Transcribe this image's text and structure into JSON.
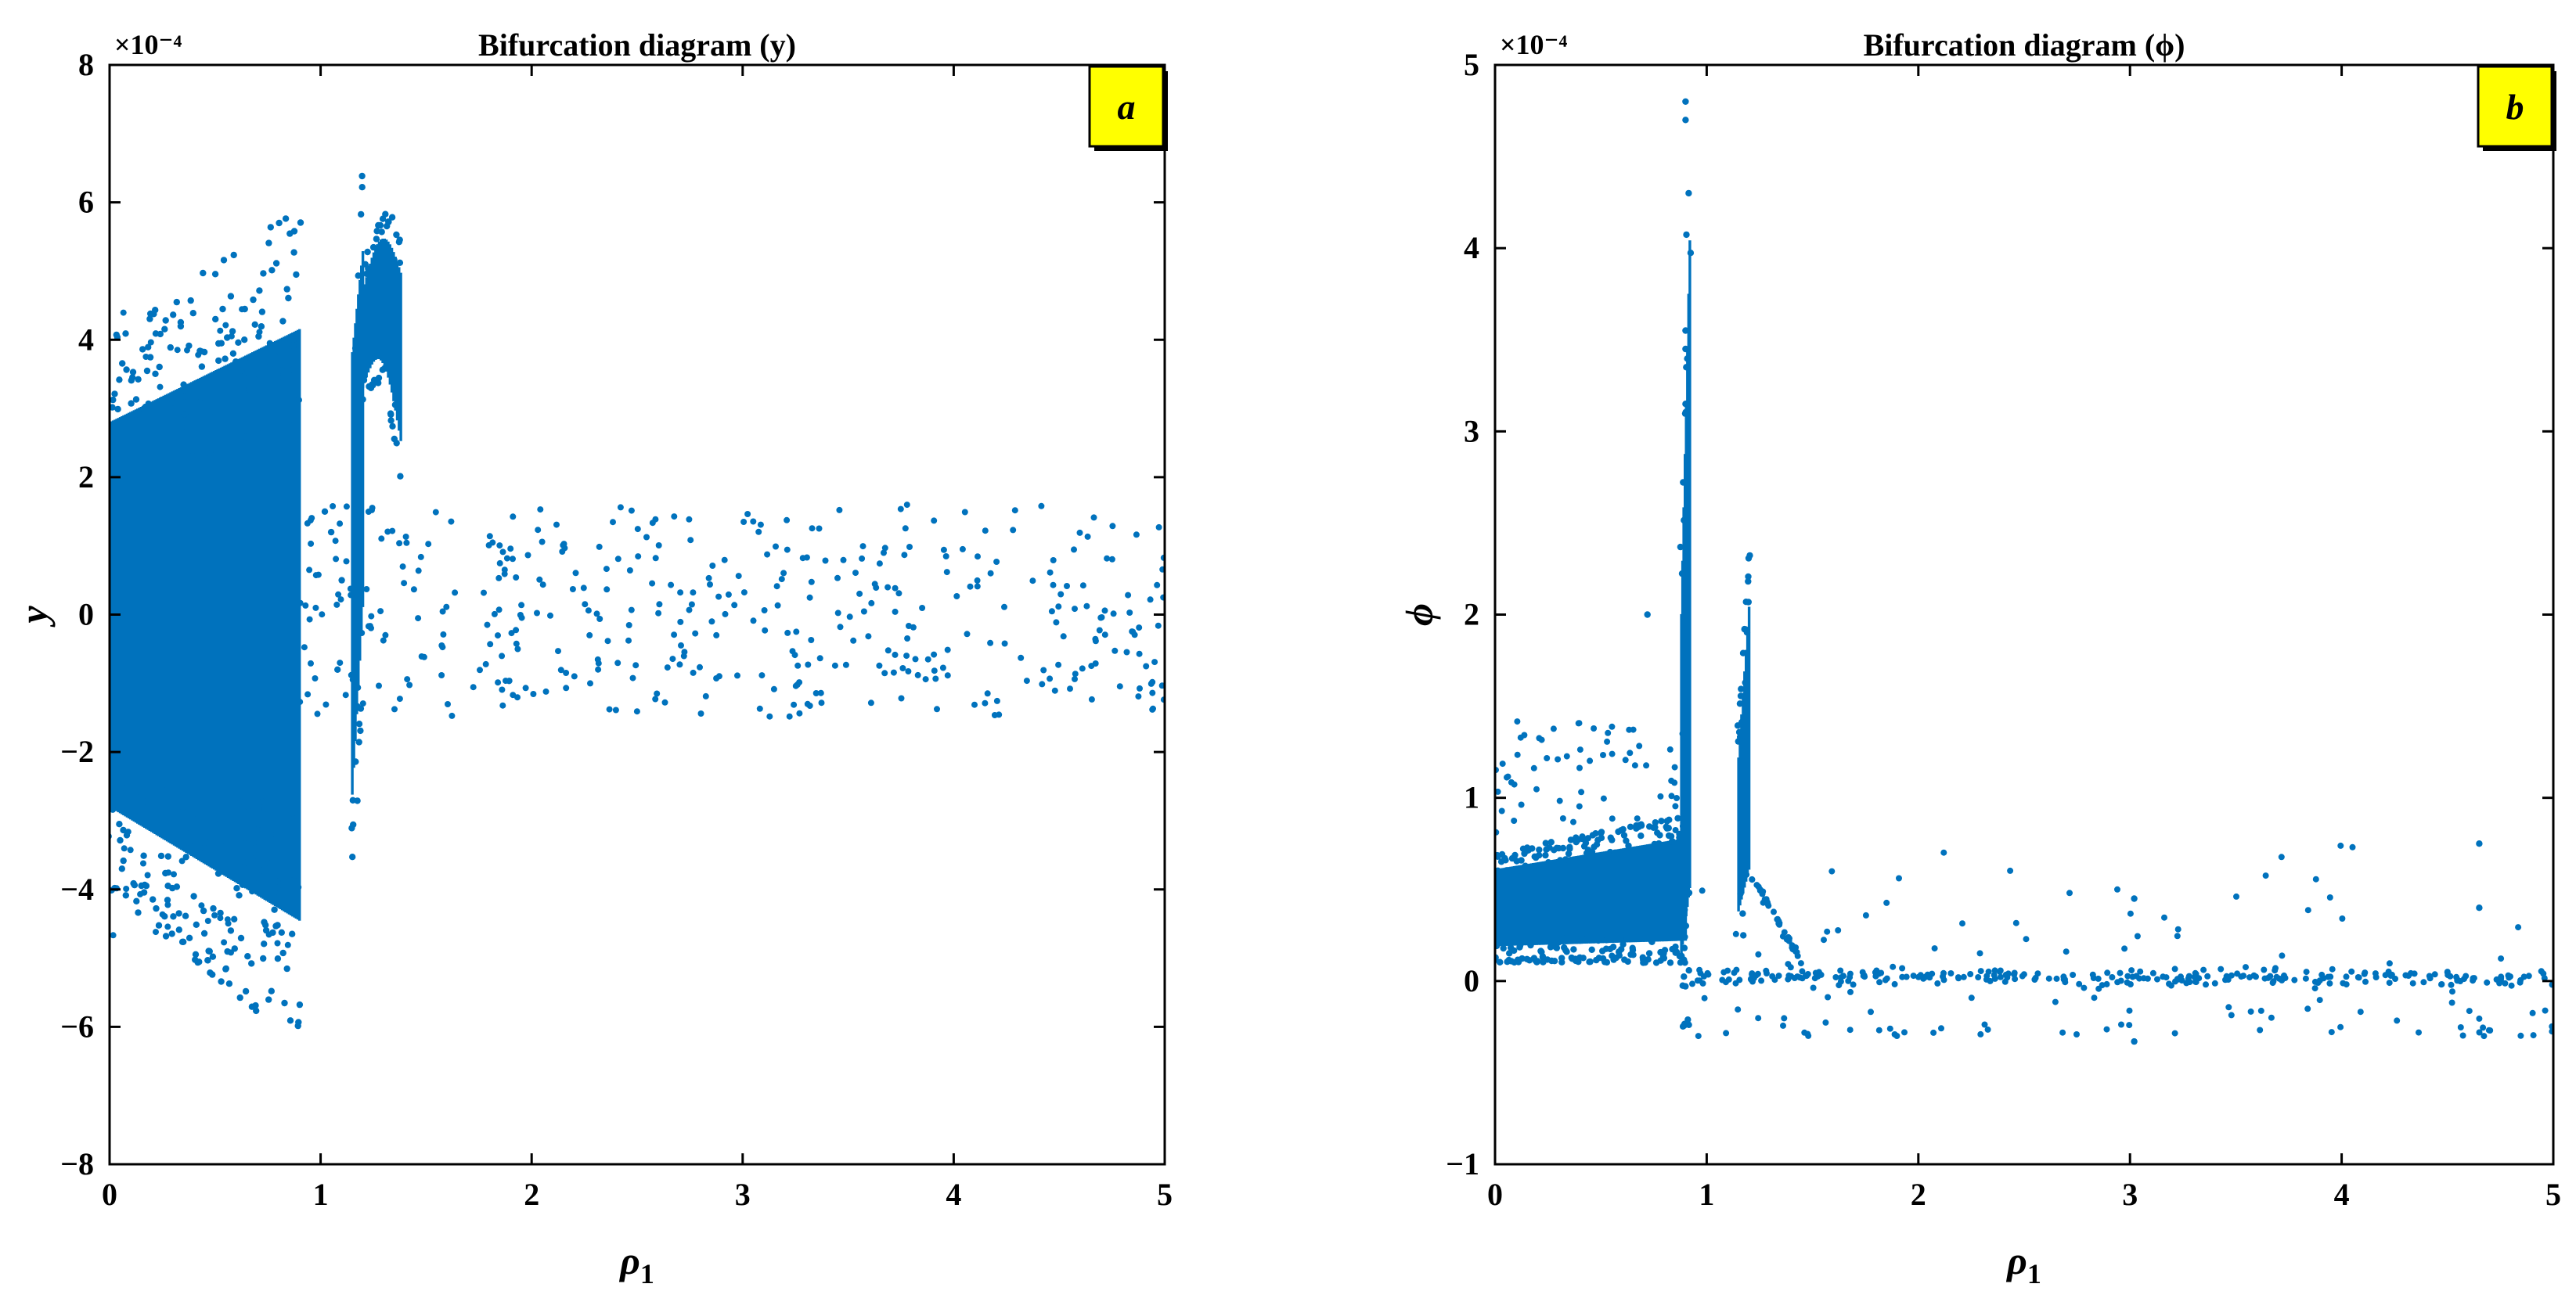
{
  "colors": {
    "marker": "#0072BD",
    "badge_fill": "#FFFF00",
    "axes": "#000000"
  },
  "chart_data": [
    {
      "type": "scatter",
      "panel": "a",
      "title": "Bifurcation diagram (y)",
      "xlabel": "ρ1",
      "ylabel": "y",
      "exponent_label": "×10⁻⁴",
      "xlim": [
        0,
        5
      ],
      "ylim": [
        -8,
        8
      ],
      "xticks": [
        0,
        1,
        2,
        3,
        4,
        5
      ],
      "yticks": [
        -8,
        -6,
        -4,
        -2,
        0,
        2,
        4,
        6,
        8
      ],
      "ytick_labels": [
        "−8",
        "−6",
        "−4",
        "−2",
        "0",
        "2",
        "4",
        "6",
        "8"
      ],
      "grid": false,
      "regions": [
        {
          "x": [
            0.0,
            0.9
          ],
          "y_min": [
            -4.0,
            -6.3
          ],
          "y_max": [
            4.0,
            6.0
          ],
          "note": "dense band"
        },
        {
          "x": [
            1.15,
            1.2
          ],
          "y_min": [
            -4.0,
            -1.0
          ],
          "y_max": [
            5.2,
            6.4
          ],
          "note": "dense band"
        },
        {
          "x": [
            1.2,
            1.38
          ],
          "y_min": [
            3.0,
            2.0
          ],
          "y_max": [
            5.0,
            5.5
          ],
          "note": "arched band"
        }
      ],
      "sparse_region": {
        "x": [
          0.9,
          5.0
        ],
        "y_range": [
          -1.5,
          1.6
        ]
      }
    },
    {
      "type": "scatter",
      "panel": "b",
      "title": "Bifurcation diagram (ϕ)",
      "xlabel": "ρ1",
      "ylabel": "ϕ",
      "exponent_label": "×10⁻⁴",
      "xlim": [
        0,
        5
      ],
      "ylim": [
        -1,
        5
      ],
      "xticks": [
        0,
        1,
        2,
        3,
        4,
        5
      ],
      "yticks": [
        -1,
        0,
        1,
        2,
        3,
        4,
        5
      ],
      "ytick_labels": [
        "−1",
        "0",
        "1",
        "2",
        "3",
        "4",
        "5"
      ],
      "grid": false,
      "regions": [
        {
          "x": [
            0.0,
            0.9
          ],
          "y_min": [
            0.1,
            0.1
          ],
          "y_max": [
            0.7,
            0.9
          ],
          "note": "dense band"
        },
        {
          "x": [
            0.88,
            0.92
          ],
          "y_min": [
            -0.25,
            -0.25
          ],
          "y_max": [
            2.4,
            4.8
          ],
          "note": "spike"
        },
        {
          "x": [
            1.15,
            1.2
          ],
          "y_min": [
            0.2,
            0.3
          ],
          "y_max": [
            1.4,
            2.35
          ],
          "note": "spike"
        }
      ],
      "sparse_region": {
        "x": [
          0.9,
          5.0
        ],
        "y_range": [
          -0.3,
          0.75
        ]
      }
    }
  ],
  "panel_badges": [
    "a",
    "b"
  ]
}
